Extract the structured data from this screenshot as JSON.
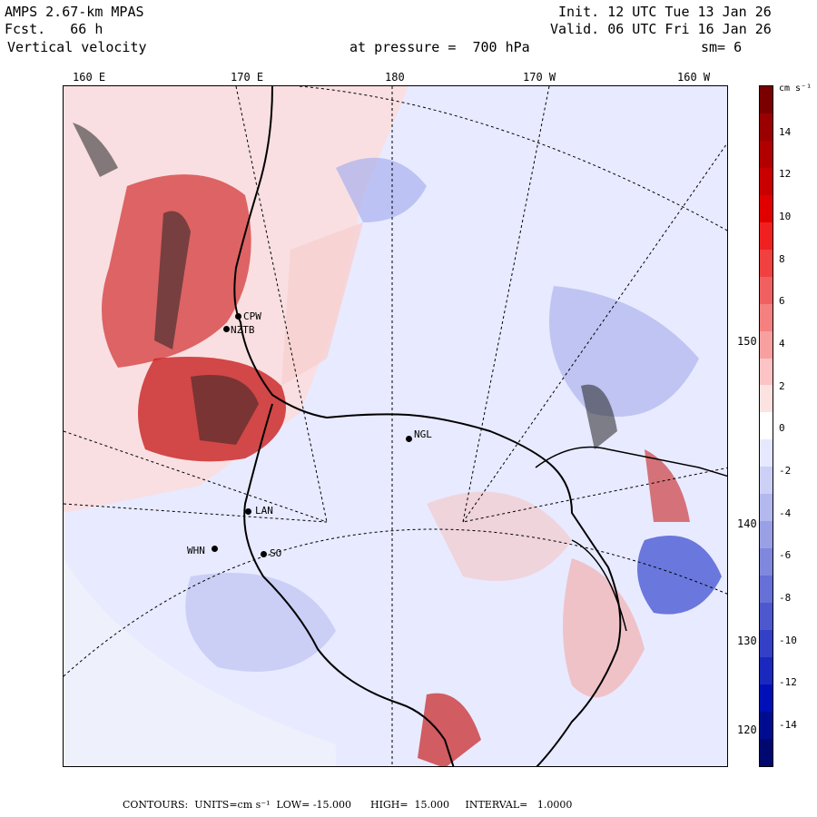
{
  "header": {
    "model": "AMPS 2.67-km MPAS",
    "fcst": "Fcst.   66 h",
    "field": "Vertical velocity",
    "init": "Init. 12 UTC Tue 13 Jan 26",
    "valid": "Valid. 06 UTC Fri 16 Jan 26",
    "level": "at pressure =  700 hPa",
    "smooth": "sm= 6"
  },
  "longitude_labels": [
    "160 E",
    "170 E",
    "180",
    "170 W",
    "160 W"
  ],
  "latitude_labels": [
    "150 W",
    "140 W",
    "130 W",
    "120 W"
  ],
  "stations": [
    "CPW",
    "NZTB",
    "NGL",
    "LAN",
    "WHN",
    "SO"
  ],
  "colorbar": {
    "units": "cm s⁻¹",
    "ticks": [
      "14",
      "12",
      "10",
      "8",
      "6",
      "4",
      "2",
      "0",
      "-2",
      "-4",
      "-6",
      "-8",
      "-10",
      "-12",
      "-14"
    ],
    "colors": [
      "#7a0000",
      "#9a0000",
      "#b00000",
      "#c80000",
      "#e00000",
      "#f02020",
      "#f04040",
      "#f06060",
      "#f48080",
      "#f8a0a0",
      "#fcc4c4",
      "#fde2e2",
      "#ffffff",
      "#e6e8ff",
      "#ccd0f6",
      "#b3b8ee",
      "#9aa0e6",
      "#8088de",
      "#6670d6",
      "#4d58ce",
      "#3440c6",
      "#1a28be",
      "#0010b6",
      "#000c90",
      "#000870"
    ]
  },
  "footer": "CONTOURS:  UNITS=cm s⁻¹  LOW= -15.000      HIGH=  15.000     INTERVAL=   1.0000"
}
